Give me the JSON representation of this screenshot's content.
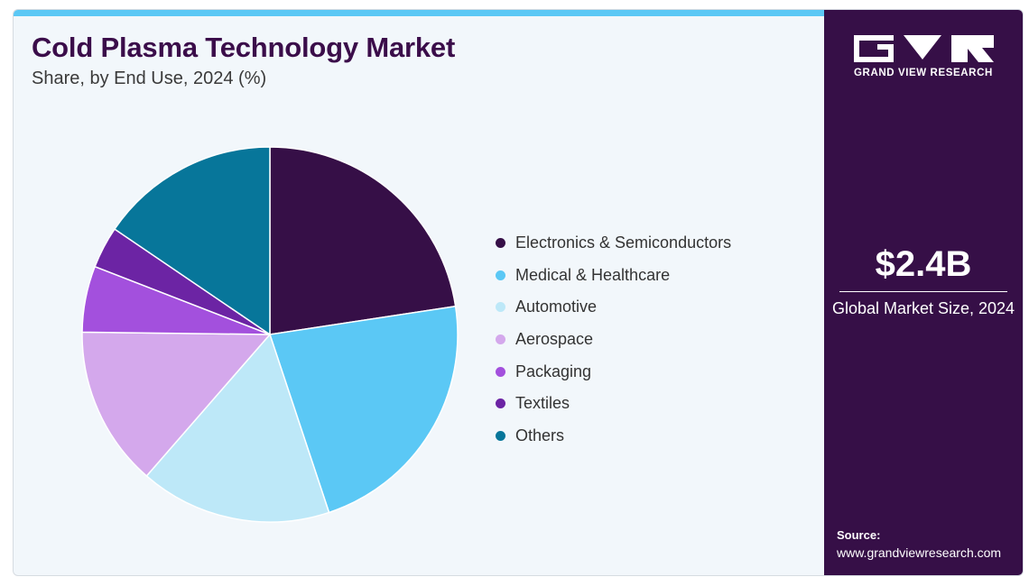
{
  "header": {
    "title": "Cold Plasma Technology Market",
    "subtitle": "Share, by End Use, 2024 (%)"
  },
  "colors": {
    "accent_bar": "#5bc8f5",
    "sidebar_bg": "#360f47",
    "panel_bg": "#f2f7fb",
    "title": "#3b0d4a"
  },
  "chart_data": {
    "type": "pie",
    "title": "Cold Plasma Technology Market",
    "subtitle": "Share, by End Use, 2024 (%)",
    "legend_position": "right",
    "slices": [
      {
        "label": "Electronics & Semiconductors",
        "value": 22.6,
        "color": "#360f47"
      },
      {
        "label": "Medical & Healthcare",
        "value": 22.3,
        "color": "#5bc8f5"
      },
      {
        "label": "Automotive",
        "value": 16.5,
        "color": "#bde8f8"
      },
      {
        "label": "Aerospace",
        "value": 13.8,
        "color": "#d4a8ec"
      },
      {
        "label": "Packaging",
        "value": 5.7,
        "color": "#a350dd"
      },
      {
        "label": "Textiles",
        "value": 3.6,
        "color": "#6c24a4"
      },
      {
        "label": "Others",
        "value": 15.5,
        "color": "#07769a"
      }
    ]
  },
  "sidebar": {
    "logo_text": "GRAND VIEW RESEARCH",
    "market_value": "$2.4B",
    "market_label": "Global Market Size, 2024",
    "source_label": "Source:",
    "source_url": "www.grandviewresearch.com"
  }
}
